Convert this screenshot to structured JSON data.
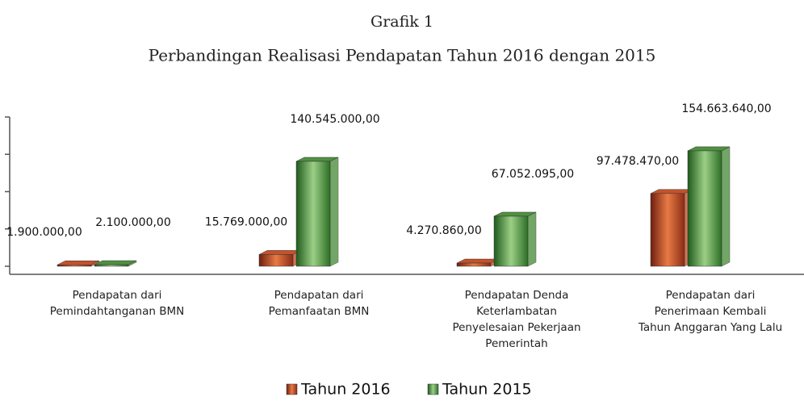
{
  "chart_data": {
    "type": "bar",
    "title": "Grafik 1",
    "subtitle": "Perbandingan Realisasi Pendapatan Tahun 2016 dengan 2015",
    "categories": [
      "Pendapatan dari\nPemindahtanganan BMN",
      "Pendapatan dari\nPemanfaatan BMN",
      "Pendapatan Denda\nKeterlambatan\nPenyelesaian Pekerjaan\nPemerintah",
      "Pendapatan dari\nPenerimaan Kembali\nTahun Anggaran Yang Lalu"
    ],
    "series": [
      {
        "name": "Tahun 2016",
        "color": "#c4532b",
        "values": [
          1900000,
          15769000,
          4270860,
          97478470
        ],
        "value_labels": [
          "1.900.000,00",
          "15.769.000,00",
          "4.270.860,00",
          "97.478.470,00"
        ]
      },
      {
        "name": "Tahun 2015",
        "color": "#4f9140",
        "values": [
          2100000,
          140545000,
          67052095,
          154663640
        ],
        "value_labels": [
          "2.100.000,00",
          "140.545.000,00",
          "67.052.095,00",
          "154.663.640,00"
        ]
      }
    ],
    "ylim": [
      0,
      200000000
    ],
    "yticks": [
      0,
      50000000,
      100000000,
      150000000,
      200000000
    ],
    "legend": "bottom"
  }
}
